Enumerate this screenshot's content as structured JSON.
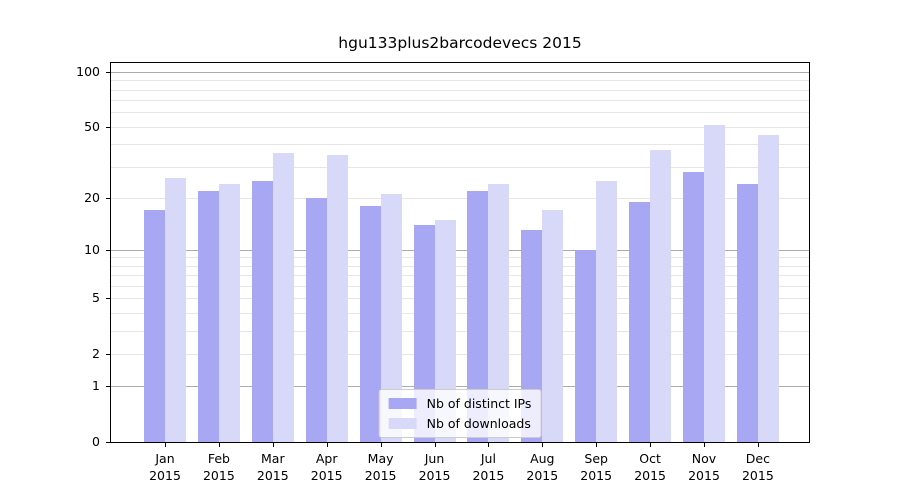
{
  "chart_data": {
    "type": "bar",
    "title": "hgu133plus2barcodevecs 2015",
    "categories": [
      "Jan",
      "Feb",
      "Mar",
      "Apr",
      "May",
      "Jun",
      "Jul",
      "Aug",
      "Sep",
      "Oct",
      "Nov",
      "Dec"
    ],
    "year": "2015",
    "series": [
      {
        "name": "Nb of distinct IPs",
        "color": "#a7a7f4",
        "values": [
          17,
          22,
          25,
          20,
          18,
          14,
          22,
          13,
          10,
          19,
          28,
          24
        ]
      },
      {
        "name": "Nb of downloads",
        "color": "#d8d8f9",
        "values": [
          26,
          24,
          36,
          35,
          21,
          15,
          24,
          17,
          25,
          37,
          51,
          45
        ]
      }
    ],
    "y_axis": {
      "scale": "log10(1+v)",
      "tick_labels": [
        100,
        50,
        20,
        10,
        5,
        2,
        1,
        0
      ],
      "major_gridlines": [
        1,
        10,
        100
      ],
      "minor_gridlines": [
        2,
        3,
        4,
        5,
        6,
        7,
        8,
        9,
        20,
        30,
        40,
        50,
        60,
        70,
        80,
        90
      ],
      "ylim": [
        0,
        112
      ]
    },
    "legend": {
      "position": "lower center"
    },
    "grid": true
  },
  "colors": {
    "background": "#ffffff",
    "text": "#000000",
    "spine": "#000000",
    "grid_major": "#ababab",
    "grid_minor": "#e6e6e6",
    "legend_bg": "rgba(255,255,255,0.8)",
    "legend_border": "#cccccc"
  }
}
